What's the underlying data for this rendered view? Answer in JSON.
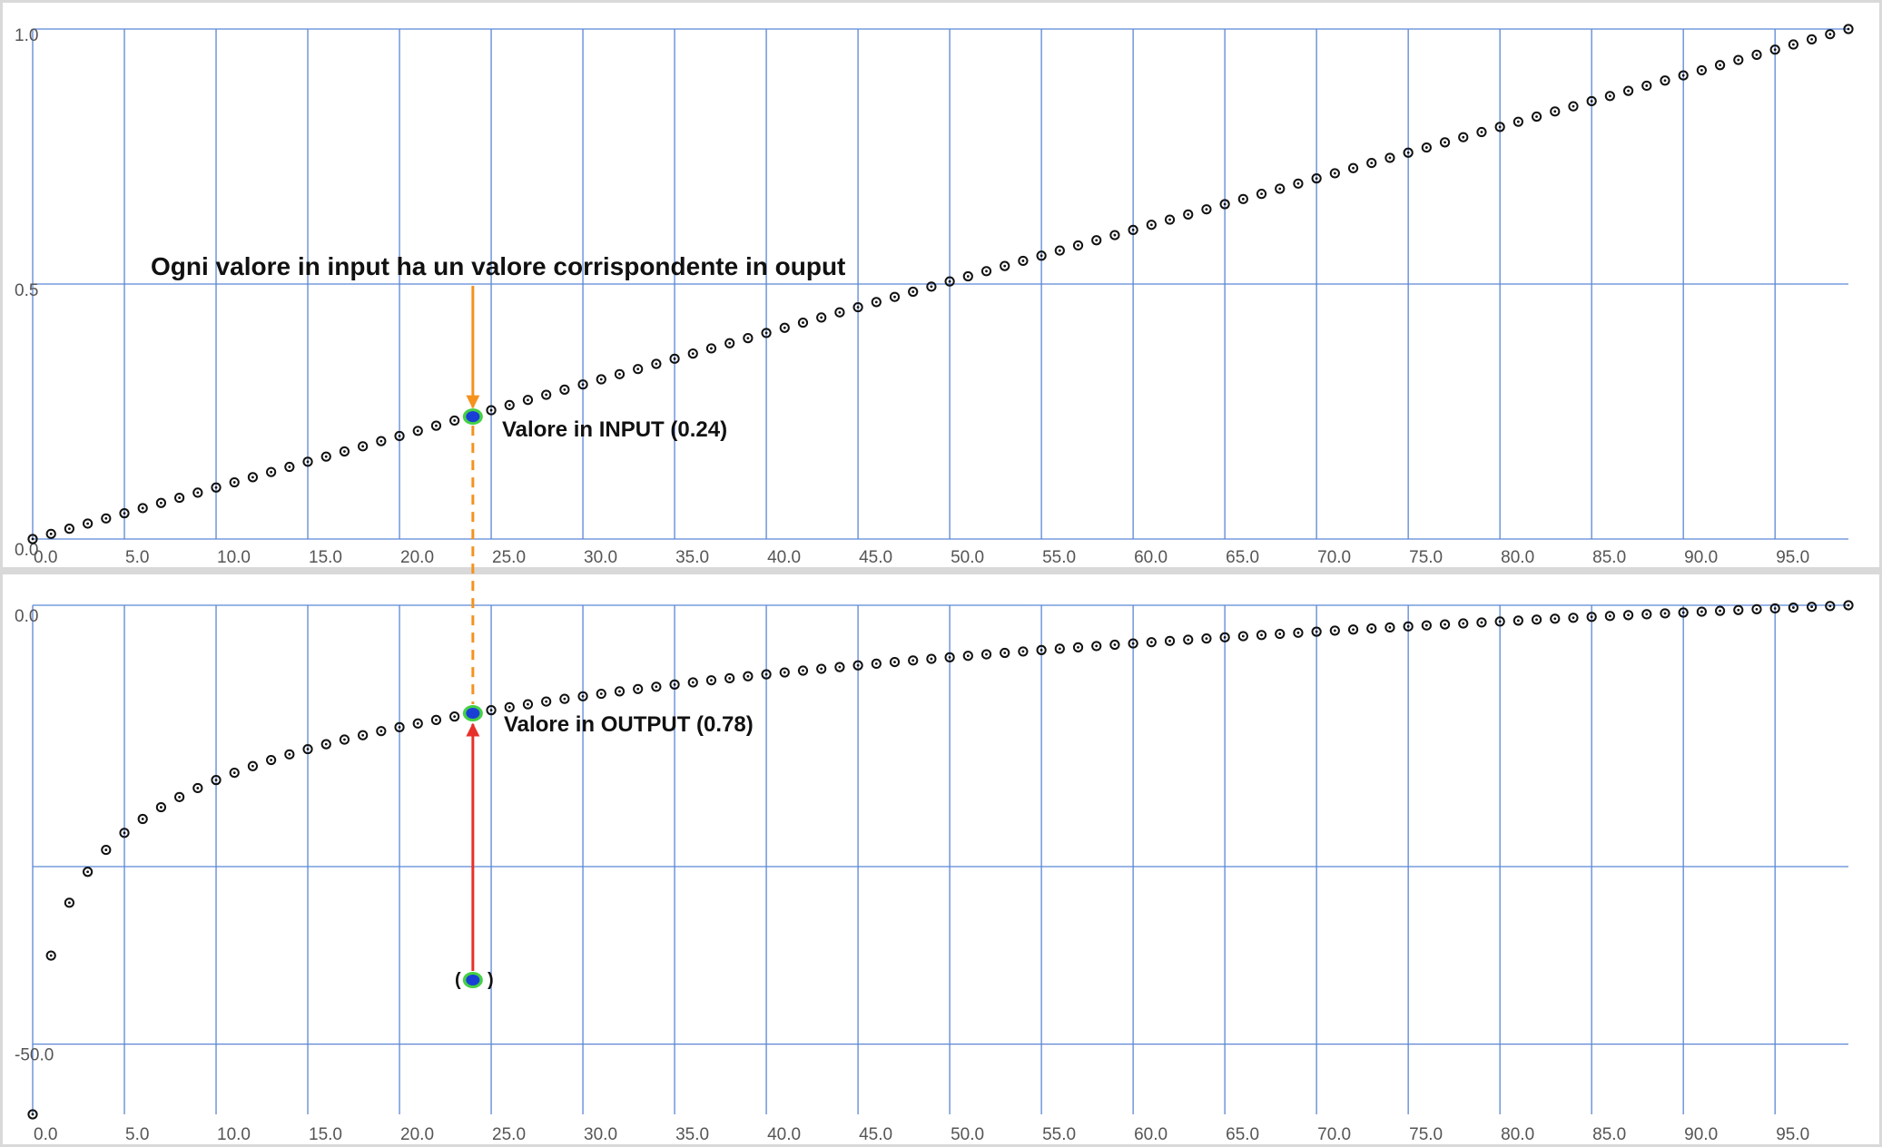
{
  "chart_data": [
    {
      "type": "scatter",
      "name_role": "input",
      "xlim": [
        0,
        99
      ],
      "ylim": [
        0,
        1
      ],
      "x_ticks": [
        "0.0",
        "5.0",
        "10.0",
        "15.0",
        "20.0",
        "25.0",
        "30.0",
        "35.0",
        "40.0",
        "45.0",
        "50.0",
        "55.0",
        "60.0",
        "65.0",
        "70.0",
        "75.0",
        "80.0",
        "85.0",
        "90.0",
        "95.0"
      ],
      "y_ticks": [
        "0.0",
        "0.5",
        "1.0"
      ],
      "grid": true,
      "series": [
        {
          "x": [
            0,
            1,
            2,
            3,
            4,
            5,
            6,
            7,
            8,
            9,
            10,
            11,
            12,
            13,
            14,
            15,
            16,
            17,
            18,
            19,
            20,
            21,
            22,
            23,
            24,
            25,
            26,
            27,
            28,
            29,
            30,
            31,
            32,
            33,
            34,
            35,
            36,
            37,
            38,
            39,
            40,
            41,
            42,
            43,
            44,
            45,
            46,
            47,
            48,
            49,
            50,
            51,
            52,
            53,
            54,
            55,
            56,
            57,
            58,
            59,
            60,
            61,
            62,
            63,
            64,
            65,
            66,
            67,
            68,
            69,
            70,
            71,
            72,
            73,
            74,
            75,
            76,
            77,
            78,
            79,
            80,
            81,
            82,
            83,
            84,
            85,
            86,
            87,
            88,
            89,
            90,
            91,
            92,
            93,
            94,
            95,
            96,
            97,
            98,
            99
          ],
          "y_rule": "linear 0 to 1"
        }
      ],
      "highlight": {
        "x": 24,
        "y": 0.24
      },
      "annotations": {
        "title": "Ogni valore in input ha un valore corrispondente in ouput",
        "point_label": "Valore in INPUT (0.24)"
      }
    },
    {
      "type": "scatter",
      "name_role": "output",
      "xlim": [
        0,
        99
      ],
      "ylim": [
        -60,
        0
      ],
      "x_ticks": [
        "0.0",
        "5.0",
        "10.0",
        "15.0",
        "20.0",
        "25.0",
        "30.0",
        "35.0",
        "40.0",
        "45.0",
        "50.0",
        "55.0",
        "60.0",
        "65.0",
        "70.0",
        "75.0",
        "80.0",
        "85.0",
        "90.0",
        "95.0"
      ],
      "y_ticks": [
        "0.0",
        "-50.0"
      ],
      "grid": true,
      "series": [
        {
          "x": "0..99",
          "y_rule": "logarithmic curve rising to 0.0"
        }
      ],
      "highlight": {
        "x": 24,
        "y": 0.78
      },
      "source_point": {
        "x": 24,
        "y": -44
      },
      "annotations": {
        "point_label": "Valore in OUTPUT (0.78)",
        "source_label_left": "(",
        "source_label_right": ")"
      }
    }
  ],
  "colors": {
    "grid": "#5b86d6",
    "marker": "#111111",
    "highlight_fill": "#1a3fd6",
    "highlight_ring": "#45d045",
    "input_arrow": "#f5921e",
    "output_arrow": "#e8302a",
    "separator": "#d9d9d9"
  }
}
